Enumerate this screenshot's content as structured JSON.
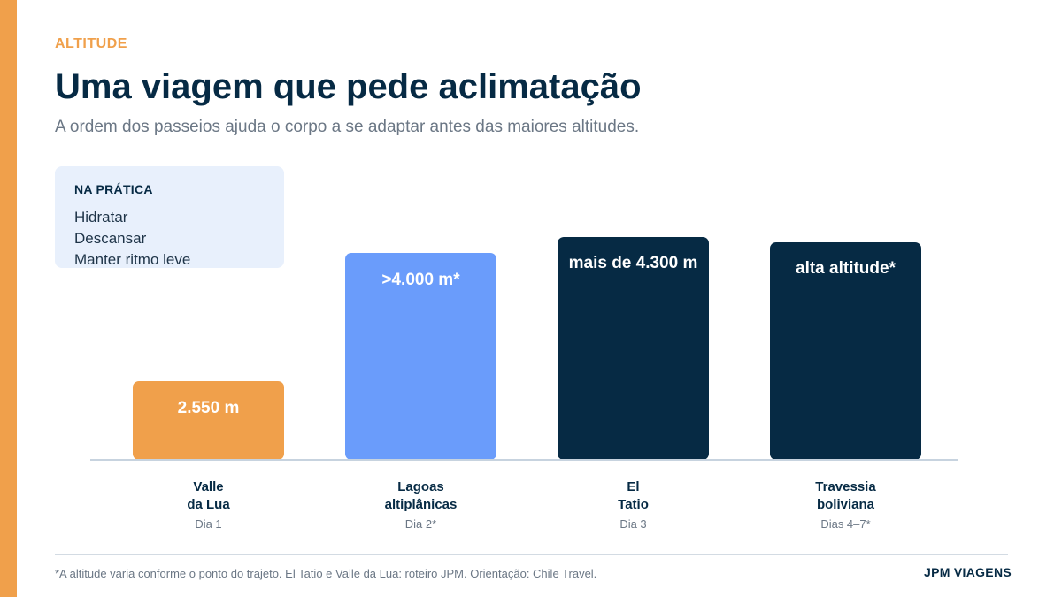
{
  "header": {
    "eyebrow": "ALTITUDE",
    "title": "Uma viagem que pede aclimatação",
    "subtitle": "A ordem dos passeios ajuda o corpo a se adaptar antes das maiores altitudes."
  },
  "tip_box": {
    "title": "NA PRÁTICA",
    "items": [
      "Hidratar",
      "Descansar",
      "Manter ritmo leve"
    ]
  },
  "chart_data": {
    "type": "bar",
    "categories": [
      [
        "Valle",
        "da Lua"
      ],
      [
        "Lagoas",
        "altiplânicas"
      ],
      [
        "El",
        "Tatio"
      ],
      [
        "Travessia",
        "boliviana"
      ]
    ],
    "sublabels": [
      "Dia 1",
      "Dia 2*",
      "Dia 3",
      "Dias 4–7*"
    ],
    "data_labels": [
      "2.550 m",
      ">4.000 m*",
      "mais de 4.300 m",
      "alta altitude*"
    ],
    "values": [
      2550,
      4000,
      4300,
      4200
    ],
    "ylim": [
      0,
      4300
    ],
    "colors": [
      "#f0a04b",
      "#6a9cfb",
      "#062a44",
      "#062a44"
    ],
    "grid": false,
    "legend": "none"
  },
  "footer": {
    "note": "*A altitude varia conforme o ponto do trajeto. El Tatio e Valle da Lua: roteiro JPM. Orientação: Chile Travel.",
    "brand": "JPM VIAGENS"
  }
}
